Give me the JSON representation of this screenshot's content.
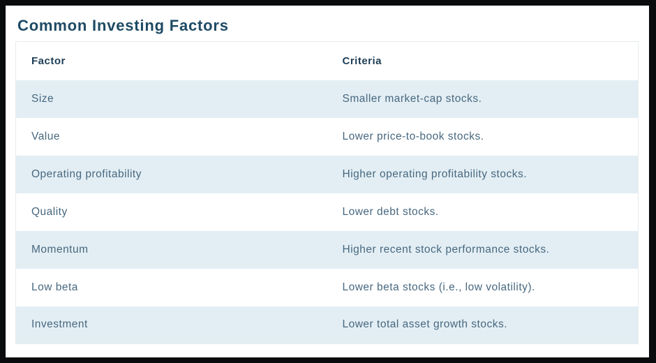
{
  "page": {
    "title": "Common Investing Factors"
  },
  "table": {
    "columns": [
      "Factor",
      "Criteria"
    ],
    "rows": [
      {
        "factor": "Size",
        "criteria": "Smaller market-cap stocks."
      },
      {
        "factor": "Value",
        "criteria": "Lower price-to-book stocks."
      },
      {
        "factor": "Operating profitability",
        "criteria": "Higher operating profitability stocks."
      },
      {
        "factor": "Quality",
        "criteria": "Lower debt stocks."
      },
      {
        "factor": "Momentum",
        "criteria": "Higher recent stock performance stocks."
      },
      {
        "factor": "Low beta",
        "criteria": "Lower beta stocks (i.e., low volatility)."
      },
      {
        "factor": "Investment",
        "criteria": "Lower total asset growth stocks."
      }
    ]
  },
  "colors": {
    "frame": "#0a0b0d",
    "title_color": "#1e4a63",
    "header_text": "#1e3e56",
    "body_text": "#47687f",
    "row_alt": "#e3eef4",
    "table_border": "#e7ebee"
  }
}
